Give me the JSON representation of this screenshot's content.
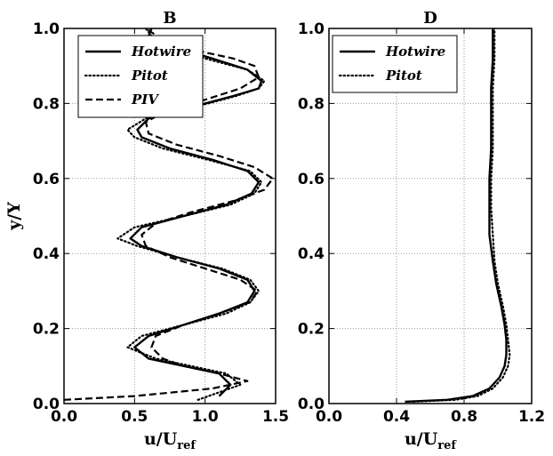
{
  "chart_data": [
    {
      "type": "line",
      "title": "B",
      "xlabel": "u/U",
      "xlabel_sub": "ref",
      "ylabel": "y/Y",
      "xlim": [
        0.0,
        1.5
      ],
      "ylim": [
        0.0,
        1.0
      ],
      "xticks": [
        "0.0",
        "0.5",
        "1.0",
        "1.5"
      ],
      "yticks": [
        "0.0",
        "0.2",
        "0.4",
        "0.6",
        "0.8",
        "1.0"
      ],
      "grid": true,
      "legend": "top-left",
      "series": [
        {
          "name": "Hotwire",
          "style": "solid",
          "x": [
            1.1,
            1.18,
            1.1,
            0.85,
            0.6,
            0.5,
            0.6,
            0.85,
            1.1,
            1.3,
            1.35,
            1.3,
            1.1,
            0.8,
            0.55,
            0.47,
            0.55,
            0.85,
            1.15,
            1.33,
            1.38,
            1.3,
            1.05,
            0.75,
            0.55,
            0.52,
            0.6,
            0.9,
            1.2,
            1.38,
            1.4,
            1.3,
            1.05,
            0.7,
            0.6,
            0.62
          ],
          "y": [
            0.02,
            0.05,
            0.08,
            0.1,
            0.12,
            0.15,
            0.18,
            0.21,
            0.24,
            0.27,
            0.3,
            0.33,
            0.36,
            0.39,
            0.42,
            0.44,
            0.47,
            0.5,
            0.53,
            0.56,
            0.59,
            0.62,
            0.65,
            0.68,
            0.71,
            0.73,
            0.76,
            0.79,
            0.82,
            0.84,
            0.86,
            0.89,
            0.92,
            0.96,
            0.98,
            1.0
          ]
        },
        {
          "name": "Pitot",
          "style": "dotted",
          "x": [
            0.95,
            1.25,
            1.15,
            0.9,
            0.65,
            0.45,
            0.55,
            0.85,
            1.15,
            1.32,
            1.38,
            1.32,
            1.12,
            0.8,
            0.52,
            0.38,
            0.5,
            0.85,
            1.18,
            1.35,
            1.4,
            1.32,
            1.02,
            0.7,
            0.5,
            0.45,
            0.58,
            0.92,
            1.22,
            1.38,
            1.42,
            1.3,
            1.0,
            0.75,
            0.62,
            0.58
          ],
          "y": [
            0.01,
            0.05,
            0.08,
            0.1,
            0.12,
            0.15,
            0.18,
            0.21,
            0.24,
            0.27,
            0.3,
            0.33,
            0.36,
            0.39,
            0.42,
            0.44,
            0.47,
            0.5,
            0.53,
            0.56,
            0.59,
            0.62,
            0.65,
            0.68,
            0.71,
            0.73,
            0.76,
            0.79,
            0.82,
            0.84,
            0.86,
            0.89,
            0.92,
            0.95,
            0.98,
            1.0
          ]
        },
        {
          "name": "PIV",
          "style": "dashed",
          "x": [
            0.0,
            0.5,
            1.05,
            1.3,
            1.1,
            0.85,
            0.7,
            0.62,
            0.65,
            0.85,
            1.1,
            1.32,
            1.37,
            1.25,
            1.0,
            0.75,
            0.58,
            0.55,
            0.65,
            0.9,
            1.2,
            1.42,
            1.48,
            1.35,
            1.1,
            0.8,
            0.6,
            0.58,
            0.72,
            1.0,
            1.25,
            1.38,
            1.35,
            1.2,
            0.95,
            0.7,
            0.58
          ],
          "y": [
            0.01,
            0.02,
            0.04,
            0.06,
            0.08,
            0.1,
            0.12,
            0.15,
            0.18,
            0.21,
            0.24,
            0.27,
            0.3,
            0.33,
            0.36,
            0.39,
            0.42,
            0.45,
            0.48,
            0.51,
            0.54,
            0.57,
            0.6,
            0.63,
            0.66,
            0.69,
            0.72,
            0.75,
            0.78,
            0.81,
            0.84,
            0.87,
            0.9,
            0.92,
            0.94,
            0.97,
            1.0
          ]
        }
      ]
    },
    {
      "type": "line",
      "title": "D",
      "xlabel": "u/U",
      "xlabel_sub": "ref",
      "ylabel": "",
      "xlim": [
        0.0,
        1.2
      ],
      "ylim": [
        0.0,
        1.0
      ],
      "xticks": [
        "0.0",
        "0.4",
        "0.8",
        "1.2"
      ],
      "yticks": [
        "0.0",
        "0.2",
        "0.4",
        "0.6",
        "0.8",
        "1.0"
      ],
      "grid": true,
      "legend": "top-left",
      "series": [
        {
          "name": "Hotwire",
          "style": "solid",
          "x": [
            0.45,
            0.7,
            0.85,
            0.95,
            1.01,
            1.04,
            1.05,
            1.05,
            1.04,
            1.02,
            0.99,
            0.97,
            0.95,
            0.95,
            0.95,
            0.96,
            0.96,
            0.96,
            0.97,
            0.97
          ],
          "y": [
            0.005,
            0.01,
            0.02,
            0.04,
            0.07,
            0.1,
            0.13,
            0.17,
            0.21,
            0.26,
            0.32,
            0.38,
            0.45,
            0.52,
            0.6,
            0.68,
            0.76,
            0.84,
            0.92,
            1.0
          ]
        },
        {
          "name": "Pitot",
          "style": "dotted",
          "x": [
            0.5,
            0.75,
            0.88,
            0.97,
            1.03,
            1.06,
            1.07,
            1.06,
            1.05,
            1.03,
            1.0,
            0.98,
            0.97,
            0.96,
            0.96,
            0.97,
            0.97,
            0.97,
            0.98,
            0.98
          ],
          "y": [
            0.005,
            0.01,
            0.02,
            0.04,
            0.07,
            0.1,
            0.13,
            0.17,
            0.21,
            0.26,
            0.32,
            0.38,
            0.45,
            0.52,
            0.6,
            0.68,
            0.76,
            0.84,
            0.92,
            1.0
          ]
        }
      ]
    }
  ]
}
